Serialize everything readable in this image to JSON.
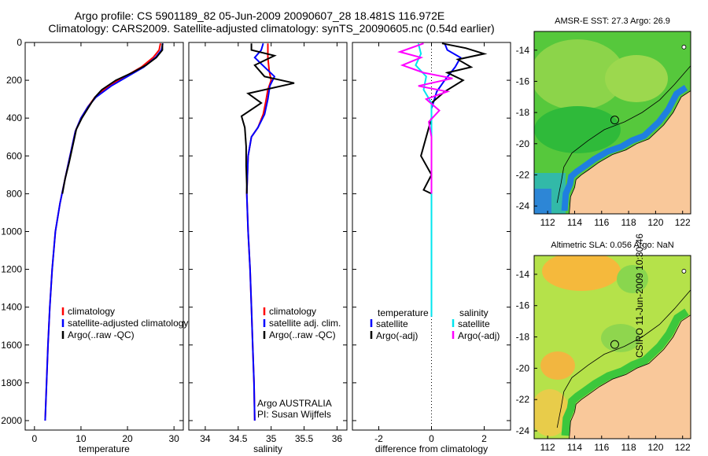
{
  "header": {
    "line1": "Argo profile: CS 5901189_82 05-Jun-2009 20090607_28 18.481S 116.972E",
    "line2": "Climatology: CARS2009. Satellite-adjusted climatology: synTS_20090605.nc (0.54d earlier)"
  },
  "footer": {
    "timestamp": "CSIRO 11-Jun-2009 10:30:46"
  },
  "colors": {
    "climatology": "#ff0000",
    "satellite": "#0000ff",
    "argo": "#000000",
    "cyan": "#00e5ee",
    "magenta": "#ff00ff",
    "land": "#f9c89a",
    "sea_green": "#2ebd2e"
  },
  "chart_data": [
    {
      "type": "line",
      "id": "temperature",
      "xlabel": "temperature",
      "xticks": [
        0,
        10,
        20,
        30
      ],
      "xlim": [
        -2,
        32
      ],
      "ylim": [
        2050,
        0
      ],
      "yticks": [
        0,
        200,
        400,
        600,
        800,
        1000,
        1200,
        1400,
        1600,
        1800,
        2000
      ],
      "legend": [
        "climatology",
        "satellite-adjusted climatology",
        "Argo(..raw -QC)"
      ],
      "series": [
        {
          "name": "climatology",
          "color": "#ff0000",
          "points": [
            [
              27.1,
              5
            ],
            [
              26.8,
              40
            ],
            [
              25.5,
              80
            ],
            [
              23,
              130
            ],
            [
              19.5,
              180
            ],
            [
              16,
              230
            ],
            [
              13,
              290
            ],
            [
              11.5,
              340
            ],
            [
              10,
              400
            ],
            [
              8.8,
              470
            ],
            [
              8,
              560
            ],
            [
              7.2,
              650
            ],
            [
              6.5,
              730
            ],
            [
              5.5,
              850
            ],
            [
              4.5,
              1000
            ],
            [
              3.8,
              1200
            ],
            [
              3.3,
              1400
            ],
            [
              2.9,
              1600
            ],
            [
              2.6,
              1800
            ],
            [
              2.3,
              2000
            ]
          ]
        },
        {
          "name": "satellite-adjusted climatology",
          "color": "#0000ff",
          "points": [
            [
              27.6,
              5
            ],
            [
              27.3,
              40
            ],
            [
              26,
              80
            ],
            [
              23.5,
              130
            ],
            [
              20,
              180
            ],
            [
              16.5,
              230
            ],
            [
              13.2,
              290
            ],
            [
              11.5,
              340
            ],
            [
              10,
              400
            ],
            [
              8.8,
              470
            ],
            [
              8,
              560
            ],
            [
              7.2,
              650
            ],
            [
              6.5,
              730
            ],
            [
              5.5,
              850
            ],
            [
              4.5,
              1000
            ],
            [
              3.8,
              1200
            ],
            [
              3.3,
              1400
            ],
            [
              2.9,
              1600
            ],
            [
              2.6,
              1800
            ],
            [
              2.3,
              2000
            ]
          ]
        },
        {
          "name": "Argo(..raw -QC)",
          "color": "#000000",
          "points": [
            [
              27.5,
              5
            ],
            [
              27.5,
              40
            ],
            [
              26.2,
              80
            ],
            [
              24,
              120
            ],
            [
              21,
              160
            ],
            [
              17.5,
              200
            ],
            [
              14.5,
              250
            ],
            [
              13,
              290
            ],
            [
              11.7,
              340
            ],
            [
              10.2,
              400
            ],
            [
              9,
              460
            ],
            [
              8.2,
              550
            ],
            [
              7.4,
              640
            ],
            [
              6.6,
              720
            ],
            [
              6,
              800
            ]
          ]
        }
      ]
    },
    {
      "type": "line",
      "id": "salinity",
      "xlabel": "salinity",
      "xticks": [
        34,
        34.5,
        35,
        35.5,
        36
      ],
      "xtick_labels": [
        "34",
        "34.5",
        "35",
        "35.5",
        "36"
      ],
      "xlim": [
        33.75,
        36.15
      ],
      "ylim": [
        2050,
        0
      ],
      "legend": [
        "climatology",
        "satellite adj. clim.",
        "Argo(..raw -QC)"
      ],
      "annotations": [
        "Argo AUSTRALIA",
        "PI: Susan Wijffels"
      ],
      "series": [
        {
          "name": "climatology",
          "color": "#ff0000",
          "points": [
            [
              34.95,
              5
            ],
            [
              34.95,
              80
            ],
            [
              34.97,
              150
            ],
            [
              35.0,
              200
            ],
            [
              34.95,
              250
            ],
            [
              34.92,
              310
            ],
            [
              34.88,
              380
            ],
            [
              34.8,
              450
            ],
            [
              34.7,
              500
            ],
            [
              34.65,
              600
            ],
            [
              34.63,
              800
            ],
            [
              34.65,
              1000
            ],
            [
              34.68,
              1200
            ],
            [
              34.7,
              1400
            ],
            [
              34.72,
              1600
            ],
            [
              34.74,
              1800
            ],
            [
              34.75,
              2000
            ]
          ]
        },
        {
          "name": "satellite adj. clim.",
          "color": "#0000ff",
          "points": [
            [
              34.88,
              5
            ],
            [
              34.85,
              40
            ],
            [
              34.75,
              80
            ],
            [
              34.9,
              130
            ],
            [
              35.05,
              180
            ],
            [
              34.98,
              230
            ],
            [
              34.95,
              300
            ],
            [
              34.9,
              380
            ],
            [
              34.8,
              450
            ],
            [
              34.7,
              500
            ],
            [
              34.65,
              600
            ],
            [
              34.63,
              800
            ],
            [
              34.65,
              1000
            ],
            [
              34.68,
              1200
            ],
            [
              34.7,
              1400
            ],
            [
              34.72,
              1600
            ],
            [
              34.74,
              1800
            ],
            [
              34.75,
              2000
            ]
          ]
        },
        {
          "name": "Argo(..raw -QC)",
          "color": "#000000",
          "points": [
            [
              34.7,
              5
            ],
            [
              34.7,
              40
            ],
            [
              35.05,
              70
            ],
            [
              34.75,
              120
            ],
            [
              34.9,
              180
            ],
            [
              35.35,
              215
            ],
            [
              34.65,
              270
            ],
            [
              34.85,
              320
            ],
            [
              34.55,
              390
            ],
            [
              34.6,
              450
            ],
            [
              34.62,
              550
            ],
            [
              34.62,
              650
            ],
            [
              34.63,
              750
            ],
            [
              34.63,
              800
            ]
          ]
        }
      ]
    },
    {
      "type": "line",
      "id": "difference",
      "xlabel": "difference from climatology",
      "xticks": [
        -2,
        0,
        2
      ],
      "xlim": [
        -3,
        3
      ],
      "ylim": [
        2050,
        0
      ],
      "legend_headers": [
        "temperature",
        "salinity"
      ],
      "legend": [
        "satellite",
        "Argo(-adj)",
        "satellite",
        "Argo(-adj)"
      ],
      "series": [
        {
          "name": "satellite",
          "group": "temperature",
          "color": "#0000ff",
          "points": [
            [
              0.5,
              5
            ],
            [
              0.6,
              40
            ],
            [
              1.1,
              80
            ],
            [
              0.9,
              130
            ],
            [
              0.5,
              200
            ],
            [
              0.2,
              260
            ],
            [
              0.0,
              350
            ],
            [
              0.0,
              500
            ],
            [
              0.0,
              1000
            ],
            [
              0.0,
              1300
            ],
            [
              0.0,
              1450
            ]
          ]
        },
        {
          "name": "Argo(-adj)",
          "group": "temperature",
          "color": "#000000",
          "points": [
            [
              0.4,
              5
            ],
            [
              1.3,
              30
            ],
            [
              2.0,
              60
            ],
            [
              1.0,
              90
            ],
            [
              1.5,
              130
            ],
            [
              0.6,
              160
            ],
            [
              1.2,
              200
            ],
            [
              0.5,
              260
            ],
            [
              0.0,
              320
            ],
            [
              0.0,
              400
            ],
            [
              -0.2,
              500
            ],
            [
              -0.4,
              600
            ],
            [
              0.0,
              700
            ],
            [
              -0.3,
              780
            ],
            [
              0.0,
              800
            ]
          ]
        },
        {
          "name": "satellite",
          "group": "salinity",
          "color": "#00e5ee",
          "points": [
            [
              -0.5,
              5
            ],
            [
              -0.4,
              60
            ],
            [
              -0.6,
              120
            ],
            [
              -0.2,
              180
            ],
            [
              -0.3,
              250
            ],
            [
              0.0,
              320
            ],
            [
              0.0,
              400
            ],
            [
              0.0,
              600
            ],
            [
              0.0,
              1000
            ],
            [
              0.0,
              1300
            ],
            [
              0.0,
              1450
            ]
          ]
        },
        {
          "name": "Argo(-adj)",
          "group": "salinity",
          "color": "#ff00ff",
          "points": [
            [
              -0.3,
              5
            ],
            [
              -1.2,
              50
            ],
            [
              -0.4,
              80
            ],
            [
              -1.1,
              120
            ],
            [
              -0.3,
              160
            ],
            [
              0.8,
              190
            ],
            [
              -0.5,
              230
            ],
            [
              0.6,
              260
            ],
            [
              -0.2,
              300
            ],
            [
              0.3,
              360
            ],
            [
              -0.1,
              420
            ],
            [
              0.0,
              500
            ],
            [
              0.0,
              600
            ],
            [
              0.0,
              700
            ],
            [
              0.0,
              800
            ]
          ]
        }
      ]
    },
    {
      "type": "heatmap",
      "id": "sst-map",
      "title": "AMSR-E SST: 27.3 Argo: 26.9",
      "xticks": [
        112,
        114,
        116,
        118,
        120,
        122
      ],
      "yticks": [
        -14,
        -16,
        -18,
        -20,
        -22,
        -24
      ],
      "xlim": [
        111,
        122.6
      ],
      "ylim": [
        -24.5,
        -12.8
      ],
      "marker": {
        "lon": 116.972,
        "lat": -18.481
      }
    },
    {
      "type": "heatmap",
      "id": "sla-map",
      "title": "Altimetric SLA: 0.056 Argo: NaN",
      "xticks": [
        112,
        114,
        116,
        118,
        120,
        122
      ],
      "yticks": [
        -14,
        -16,
        -18,
        -20,
        -22,
        -24
      ],
      "xlim": [
        111,
        122.6
      ],
      "ylim": [
        -24.5,
        -12.8
      ],
      "marker": {
        "lon": 116.972,
        "lat": -18.481
      }
    }
  ]
}
